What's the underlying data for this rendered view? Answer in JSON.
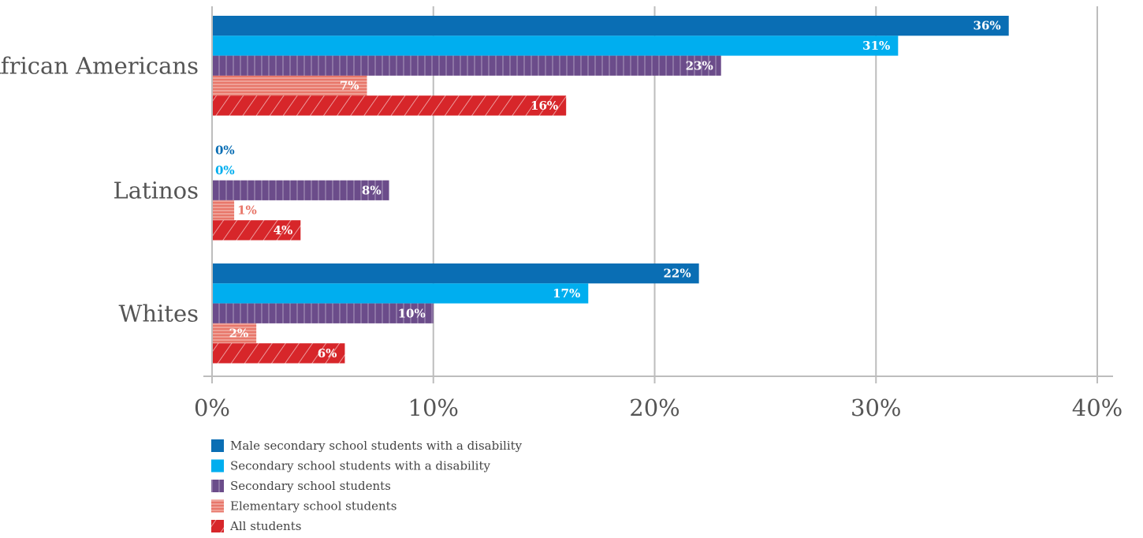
{
  "chart_data": {
    "type": "bar",
    "orientation": "horizontal",
    "categories": [
      "African Americans",
      "Latinos",
      "Whites"
    ],
    "series": [
      {
        "name": "Male secondary school students with a disability",
        "values": [
          36,
          0,
          22
        ],
        "labels": [
          "36%",
          "0%",
          "22%"
        ],
        "color": "#0a6eb4",
        "pattern": "solid"
      },
      {
        "name": "Secondary school students with a disability",
        "values": [
          31,
          0,
          17
        ],
        "labels": [
          "31%",
          "0%",
          "17%"
        ],
        "color": "#00aeef",
        "pattern": "solid"
      },
      {
        "name": "Secondary school students",
        "values": [
          23,
          8,
          10
        ],
        "labels": [
          "23%",
          "8%",
          "10%"
        ],
        "color": "#6b4c8a",
        "pattern": "vertical-stripes"
      },
      {
        "name": "Elementary school students",
        "values": [
          7,
          1,
          2
        ],
        "labels": [
          "7%",
          "1%",
          "2%"
        ],
        "color": "#e8776a",
        "pattern": "horizontal-stripes"
      },
      {
        "name": "All students",
        "values": [
          16,
          4,
          6
        ],
        "labels": [
          "16%",
          "4%",
          "6%"
        ],
        "color": "#d7262a",
        "pattern": "diagonal-stripes"
      }
    ],
    "xlim": [
      0,
      40
    ],
    "xticks": [
      0,
      10,
      20,
      30,
      40
    ],
    "xtick_labels": [
      "0%",
      "10%",
      "20%",
      "30%",
      "40%"
    ],
    "grid": true,
    "legend_position": "bottom-left",
    "title": "",
    "xlabel": "",
    "ylabel": ""
  }
}
